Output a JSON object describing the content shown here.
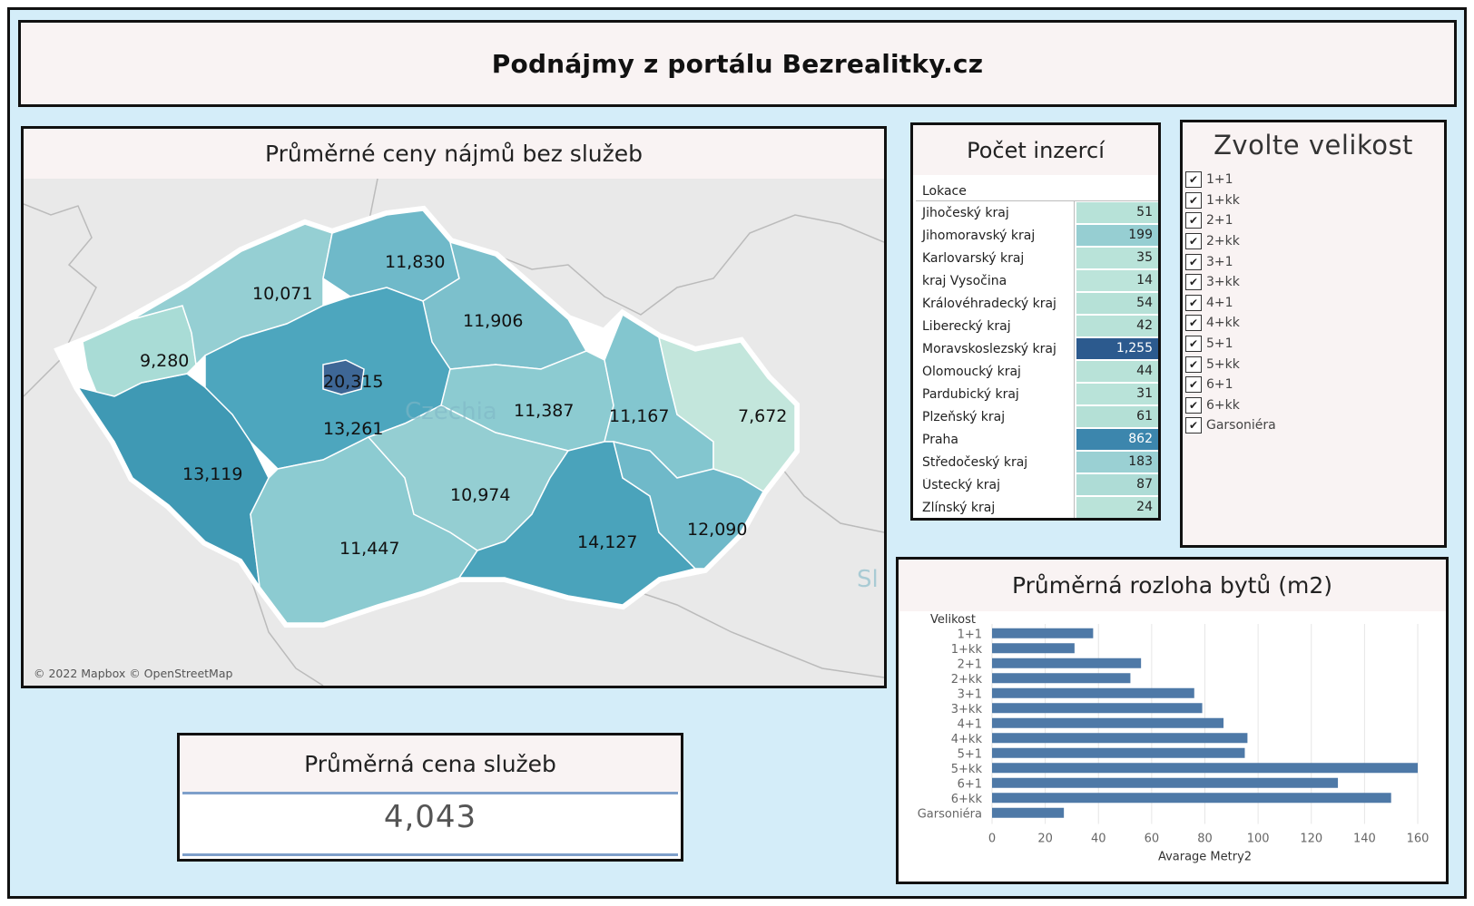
{
  "title": "Podnájmy z portálu Bezrealitky.cz",
  "colors": {
    "background": "#d4edf9",
    "panel_header": "#f9f3f3",
    "bar": "#4e79a7",
    "map_low": "#c3e6dc",
    "map_high": "#3e6796"
  },
  "map": {
    "title": "Průměrné ceny nájmů bez služeb",
    "country_label": "Czechia",
    "neighbor_label": "Sl",
    "credit": "© 2022 Mapbox © OpenStreetMap",
    "regions": [
      {
        "name": "Karlovarský kraj",
        "value": "9,280"
      },
      {
        "name": "Ústecký kraj",
        "value": "10,071"
      },
      {
        "name": "Liberecký kraj",
        "value": "11,830"
      },
      {
        "name": "Královéhradecký kraj",
        "value": "11,906"
      },
      {
        "name": "Praha",
        "value": "20,315"
      },
      {
        "name": "Středočeský kraj",
        "value": "13,261"
      },
      {
        "name": "Pardubický kraj",
        "value": "11,387"
      },
      {
        "name": "Olomoucký kraj",
        "value": "11,167"
      },
      {
        "name": "Moravskoslezský kraj",
        "value": "7,672"
      },
      {
        "name": "Plzeňský kraj",
        "value": "13,119"
      },
      {
        "name": "Jihočeský kraj",
        "value": "11,447"
      },
      {
        "name": "kraj Vysočina",
        "value": "10,974"
      },
      {
        "name": "Jihomoravský kraj",
        "value": "14,127"
      },
      {
        "name": "Zlínský kraj",
        "value": "12,090"
      }
    ]
  },
  "counts": {
    "title": "Počet inzercí",
    "header": "Lokace",
    "rows": [
      {
        "name": "Jihočeský kraj",
        "value": "51",
        "color": "#b7e2d8"
      },
      {
        "name": "Jihomoravský kraj",
        "value": "199",
        "color": "#96ced2"
      },
      {
        "name": "Karlovarský kraj",
        "value": "35",
        "color": "#b9e3d9"
      },
      {
        "name": "kraj Vysočina",
        "value": "14",
        "color": "#bce4da"
      },
      {
        "name": "Královéhradecký kraj",
        "value": "54",
        "color": "#b6e1d7"
      },
      {
        "name": "Liberecký kraj",
        "value": "42",
        "color": "#b8e2d8"
      },
      {
        "name": "Moravskoslezský kraj",
        "value": "1,255",
        "color": "#2c5a8e"
      },
      {
        "name": "Olomoucký kraj",
        "value": "44",
        "color": "#b8e2d8"
      },
      {
        "name": "Pardubický kraj",
        "value": "31",
        "color": "#b9e3d9"
      },
      {
        "name": "Plzeňský kraj",
        "value": "61",
        "color": "#b4e0d6"
      },
      {
        "name": "Praha",
        "value": "862",
        "color": "#3c86ad"
      },
      {
        "name": "Středočeský kraj",
        "value": "183",
        "color": "#9ad0d3"
      },
      {
        "name": "Ústecký kraj",
        "value": "87",
        "color": "#aedcd6"
      },
      {
        "name": "Zlínský kraj",
        "value": "24",
        "color": "#bae3d9"
      }
    ]
  },
  "size_filter": {
    "title": "Zvolte velikost",
    "options": [
      "1+1",
      "1+kk",
      "2+1",
      "2+kk",
      "3+1",
      "3+kk",
      "4+1",
      "4+kk",
      "5+1",
      "5+kk",
      "6+1",
      "6+kk",
      "Garsoniéra"
    ]
  },
  "service": {
    "title": "Průměrná cena služeb",
    "value": "4,043"
  },
  "chart_data": {
    "type": "bar",
    "title": "Průměrná rozloha bytů (m2)",
    "ylabel": "Velikost",
    "xlabel": "Avarage Metry2",
    "categories": [
      "1+1",
      "1+kk",
      "2+1",
      "2+kk",
      "3+1",
      "3+kk",
      "4+1",
      "4+kk",
      "5+1",
      "5+kk",
      "6+1",
      "6+kk",
      "Garsoniéra"
    ],
    "values": [
      38,
      31,
      56,
      52,
      76,
      79,
      87,
      96,
      95,
      160,
      130,
      150,
      27
    ],
    "xlim": [
      0,
      160
    ],
    "xticks": [
      0,
      20,
      40,
      60,
      80,
      100,
      120,
      140,
      160
    ],
    "orientation": "horizontal",
    "grid": true
  }
}
